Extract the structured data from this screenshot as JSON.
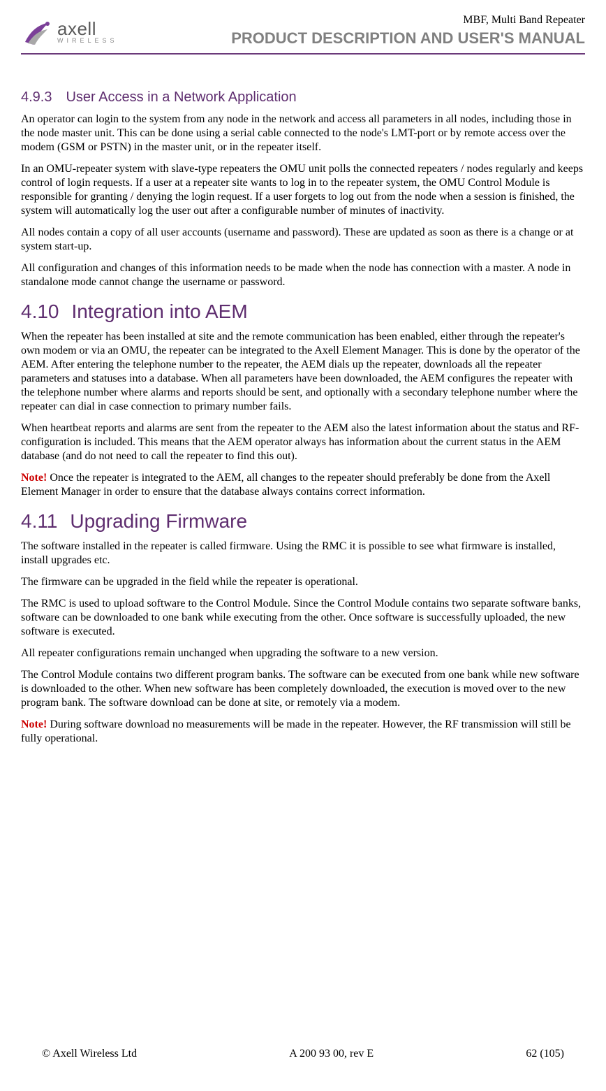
{
  "colors": {
    "heading": "#5e2d6f",
    "header_rule": "#6b3a7a",
    "doc_title_grey": "#808080",
    "note_red": "#cc0000",
    "body_text": "#000000",
    "background": "#ffffff",
    "logo_grey": "#5a5a5a",
    "logo_letterspace_grey": "#888888",
    "logo_swoosh_purple": "#7b3f98",
    "logo_swoosh_grey": "#a8a8a8"
  },
  "typography": {
    "body_family": "Times New Roman",
    "heading_family": "Verdana",
    "doc_title_family": "Arial",
    "h2_fontsize_pt": 21,
    "h3_fontsize_pt": 15,
    "body_fontsize_pt": 12
  },
  "header": {
    "logo_brand": "axell",
    "logo_sub": "WIRELESS",
    "doc_subject": "MBF, Multi Band Repeater",
    "doc_title": "PRODUCT DESCRIPTION AND USER'S MANUAL"
  },
  "sections": [
    {
      "level": "h3",
      "number": "4.9.3",
      "title": "User Access in a Network Application",
      "paragraphs": [
        {
          "note": false,
          "text": "An operator can login to the system from any node in the network and access all parameters in all nodes, including those in the node master unit. This can be done using a serial cable connected to the node's LMT-port or by remote access over the modem (GSM or PSTN) in the master unit, or in the repeater itself."
        },
        {
          "note": false,
          "text": "In an OMU-repeater system with slave-type repeaters the OMU unit polls the connected repeaters / nodes regularly and keeps control of login requests. If a user at a repeater site wants to log in to the repeater system, the OMU Control Module is responsible for granting / denying the login request. If a user forgets to log out from the node when a session is finished, the system will automatically log the user out after a configurable number of minutes of inactivity."
        },
        {
          "note": false,
          "text": "All nodes contain a copy of all user accounts (username and password). These are updated as soon as there is a change or at system start-up."
        },
        {
          "note": false,
          "text": "All configuration and changes of this information needs to be made when the node has connection with a master. A node in standalone mode cannot change the username or password."
        }
      ]
    },
    {
      "level": "h2",
      "number": "4.10",
      "title": "Integration into AEM",
      "paragraphs": [
        {
          "note": false,
          "text": "When the repeater has been installed at site and the remote communication has been enabled, either through the repeater's own modem or via an OMU, the repeater can be integrated to the Axell Element Manager. This is done by the operator of the AEM. After entering the telephone number to the repeater, the AEM dials up the repeater, downloads all the repeater parameters and statuses into a database. When all parameters have been downloaded, the AEM configures the repeater with the telephone number where alarms and reports should be sent, and optionally with a secondary telephone number where the repeater can dial in case connection to primary number fails."
        },
        {
          "note": false,
          "text": "When heartbeat reports and alarms are sent from the repeater to the AEM also the latest information about the status and RF-configuration is included. This means that the AEM operator always has information about the current status in the AEM database (and do not need to call the repeater to find this out)."
        },
        {
          "note": true,
          "note_label": "Note!",
          "text": " Once the repeater is integrated to the AEM, all changes to the repeater should preferably be done from the Axell Element Manager in order to ensure that the database always contains correct information."
        }
      ]
    },
    {
      "level": "h2",
      "number": "4.11",
      "title": "Upgrading Firmware",
      "paragraphs": [
        {
          "note": false,
          "text": "The software installed in the repeater is called firmware. Using the RMC it is possible to see what firmware is installed, install upgrades etc."
        },
        {
          "note": false,
          "text": "The firmware can be upgraded in the field while the repeater is operational."
        },
        {
          "note": false,
          "text": "The RMC is used to upload software to the Control Module. Since the Control Module contains two separate software banks, software can be downloaded to one bank while executing from the other. Once software is successfully uploaded, the new software is executed."
        },
        {
          "note": false,
          "text": "All repeater configurations remain unchanged when upgrading the software to a new version."
        },
        {
          "note": false,
          "text": "The Control Module contains two different program banks. The software can be executed from one bank while new software is downloaded to the other. When new software has been completely downloaded, the execution is moved over to the new program bank. The software download can be done at site, or remotely via a modem."
        },
        {
          "note": true,
          "note_label": "Note!",
          "text": " During software download no measurements will be made in the repeater. However, the RF transmission will still be fully operational."
        }
      ]
    }
  ],
  "footer": {
    "left": "© Axell Wireless Ltd",
    "center": "A 200 93 00, rev E",
    "right": "62 (105)"
  }
}
